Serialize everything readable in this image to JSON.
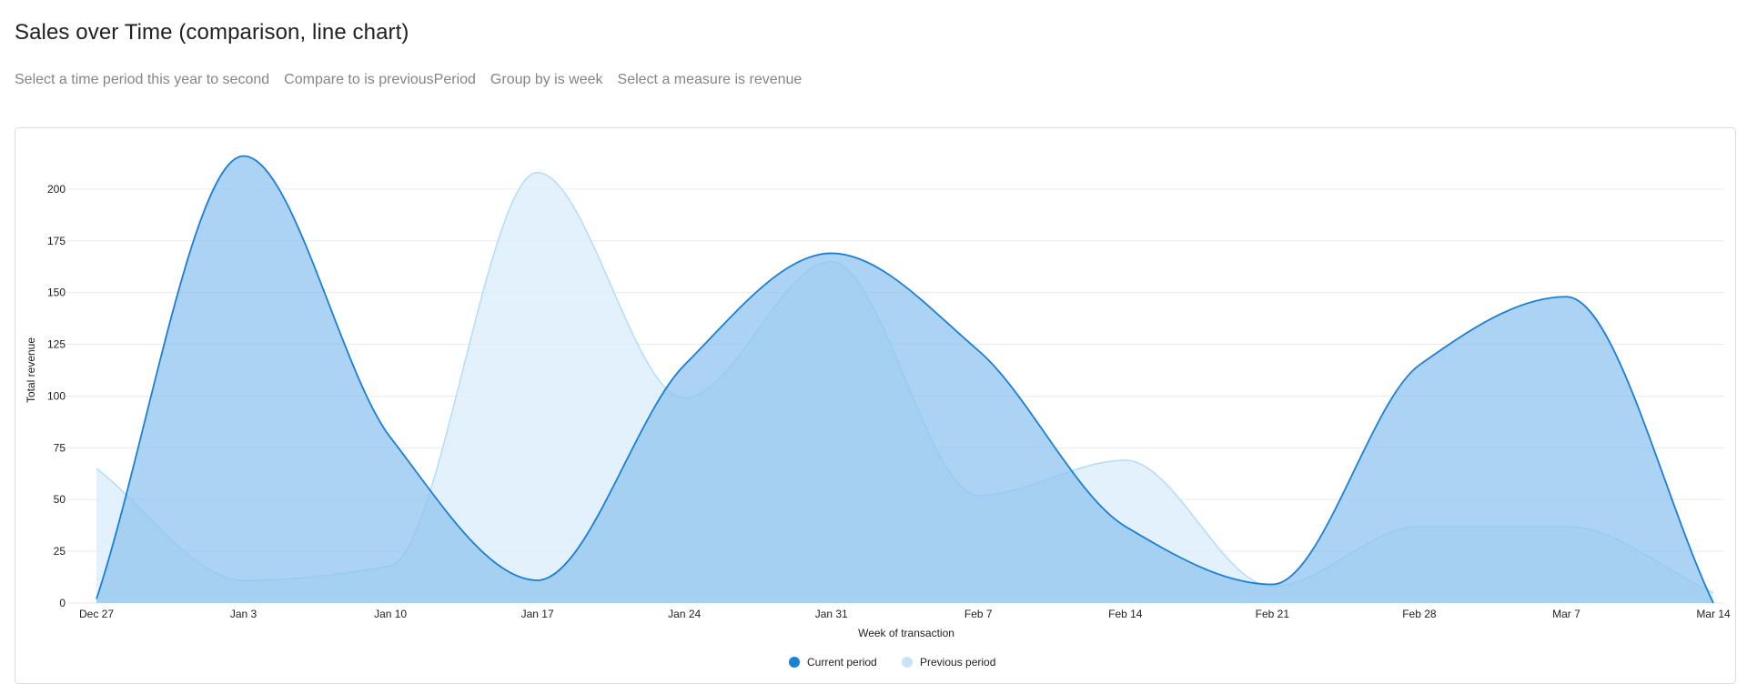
{
  "header": {
    "title": "Sales over Time (comparison, line chart)"
  },
  "filters": [
    "Select a time period this year to second",
    "Compare to is previousPeriod",
    "Group by is week",
    "Select a measure is revenue"
  ],
  "colors": {
    "current_line": "#1a7fd6",
    "current_fill": "#90c4ef",
    "previous_line": "#b3dcf7",
    "previous_fill": "#dceefb",
    "grid": "#e8eaed"
  },
  "chart_data": {
    "type": "area",
    "title": "",
    "xlabel": "Week of transaction",
    "ylabel": "Total revenue",
    "categories": [
      "Dec 27",
      "Jan 3",
      "Jan 10",
      "Jan 17",
      "Jan 24",
      "Jan 31",
      "Feb 7",
      "Feb 14",
      "Feb 21",
      "Feb 28",
      "Mar 7",
      "Mar 14"
    ],
    "ylim": [
      0,
      225
    ],
    "yticks": [
      0,
      25,
      50,
      75,
      100,
      125,
      150,
      175,
      200
    ],
    "grid": true,
    "legend_position": "bottom-center",
    "series": [
      {
        "name": "Previous period",
        "values": [
          65,
          11,
          18,
          208,
          99,
          165,
          52,
          69,
          8,
          37,
          37,
          5
        ]
      },
      {
        "name": "Current period",
        "values": [
          2,
          216,
          80,
          11,
          115,
          169,
          122,
          37,
          9,
          115,
          148,
          0
        ]
      }
    ]
  }
}
